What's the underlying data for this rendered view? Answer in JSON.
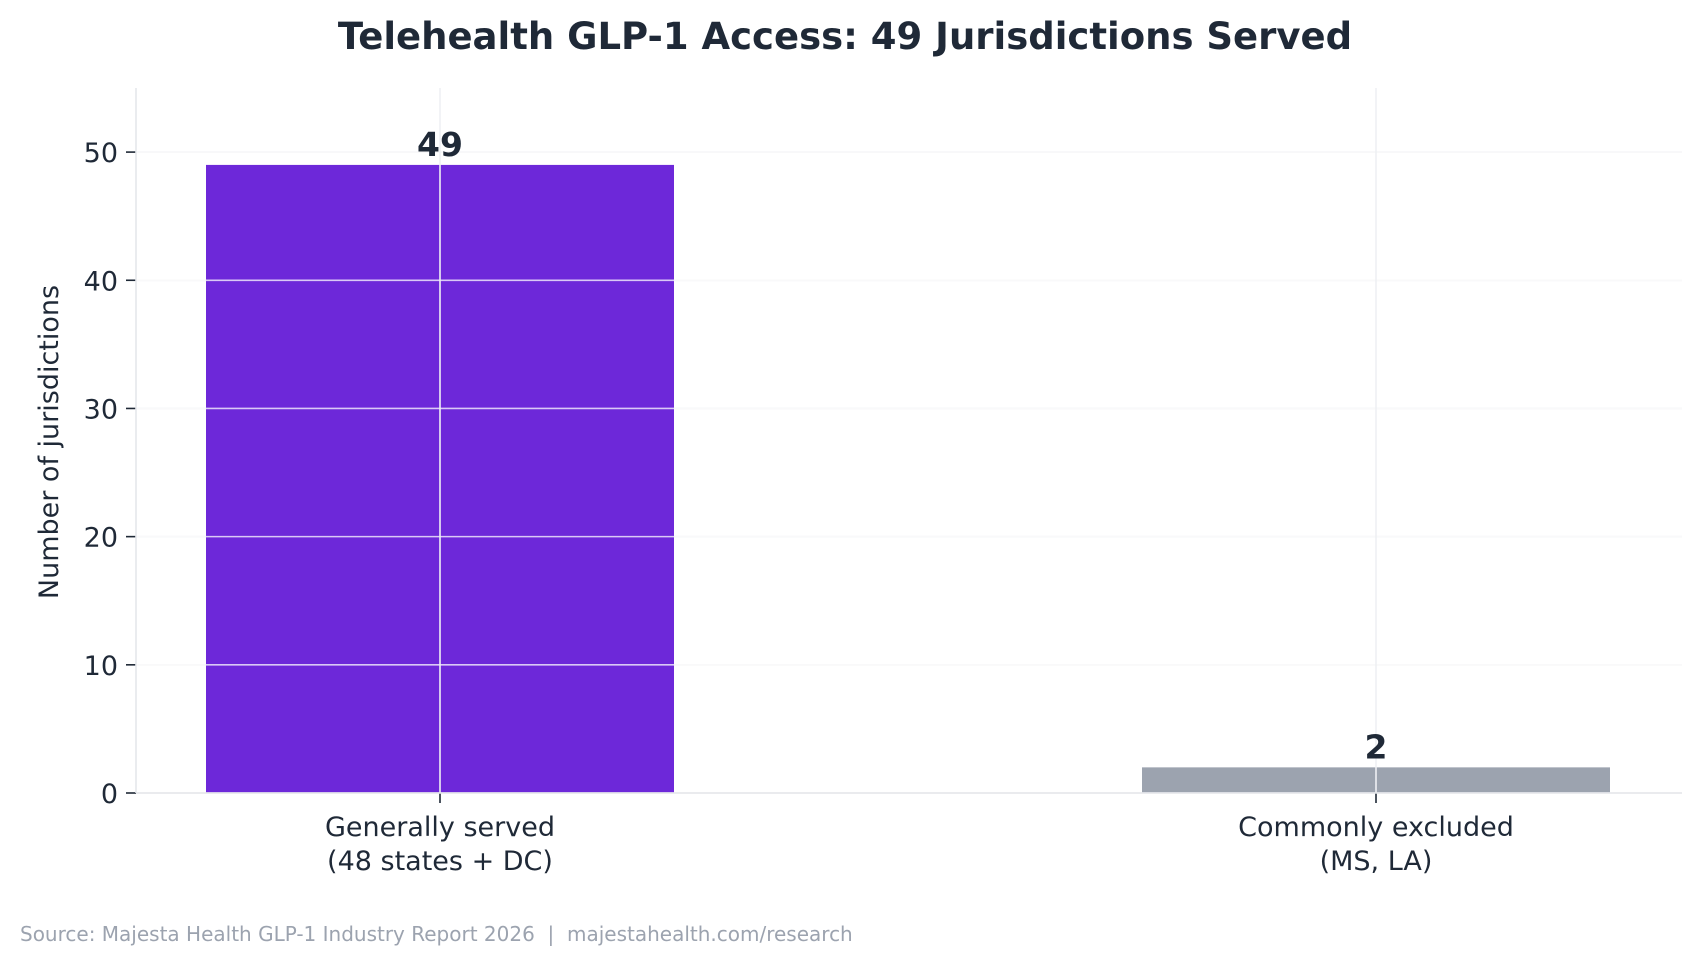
{
  "chart_data": {
    "type": "bar",
    "title": "Telehealth GLP-1 Access: 49 Jurisdictions Served",
    "ylabel": "Number of jurisdictions",
    "xlabel": "",
    "categories": [
      [
        "Generally served",
        "(48 states + DC)"
      ],
      [
        "Commonly excluded",
        "(MS, LA)"
      ]
    ],
    "values": [
      49,
      2
    ],
    "data_labels": [
      "49",
      "2"
    ],
    "colors": [
      "#6d28d9",
      "#9ca3af"
    ],
    "ylim": [
      0,
      55
    ],
    "yticks": [
      0,
      10,
      20,
      30,
      40,
      50
    ],
    "grid": true,
    "legend": "none"
  },
  "source_note": "Source: Majesta Health GLP-1 Industry Report 2026  |  majestahealth.com/research"
}
